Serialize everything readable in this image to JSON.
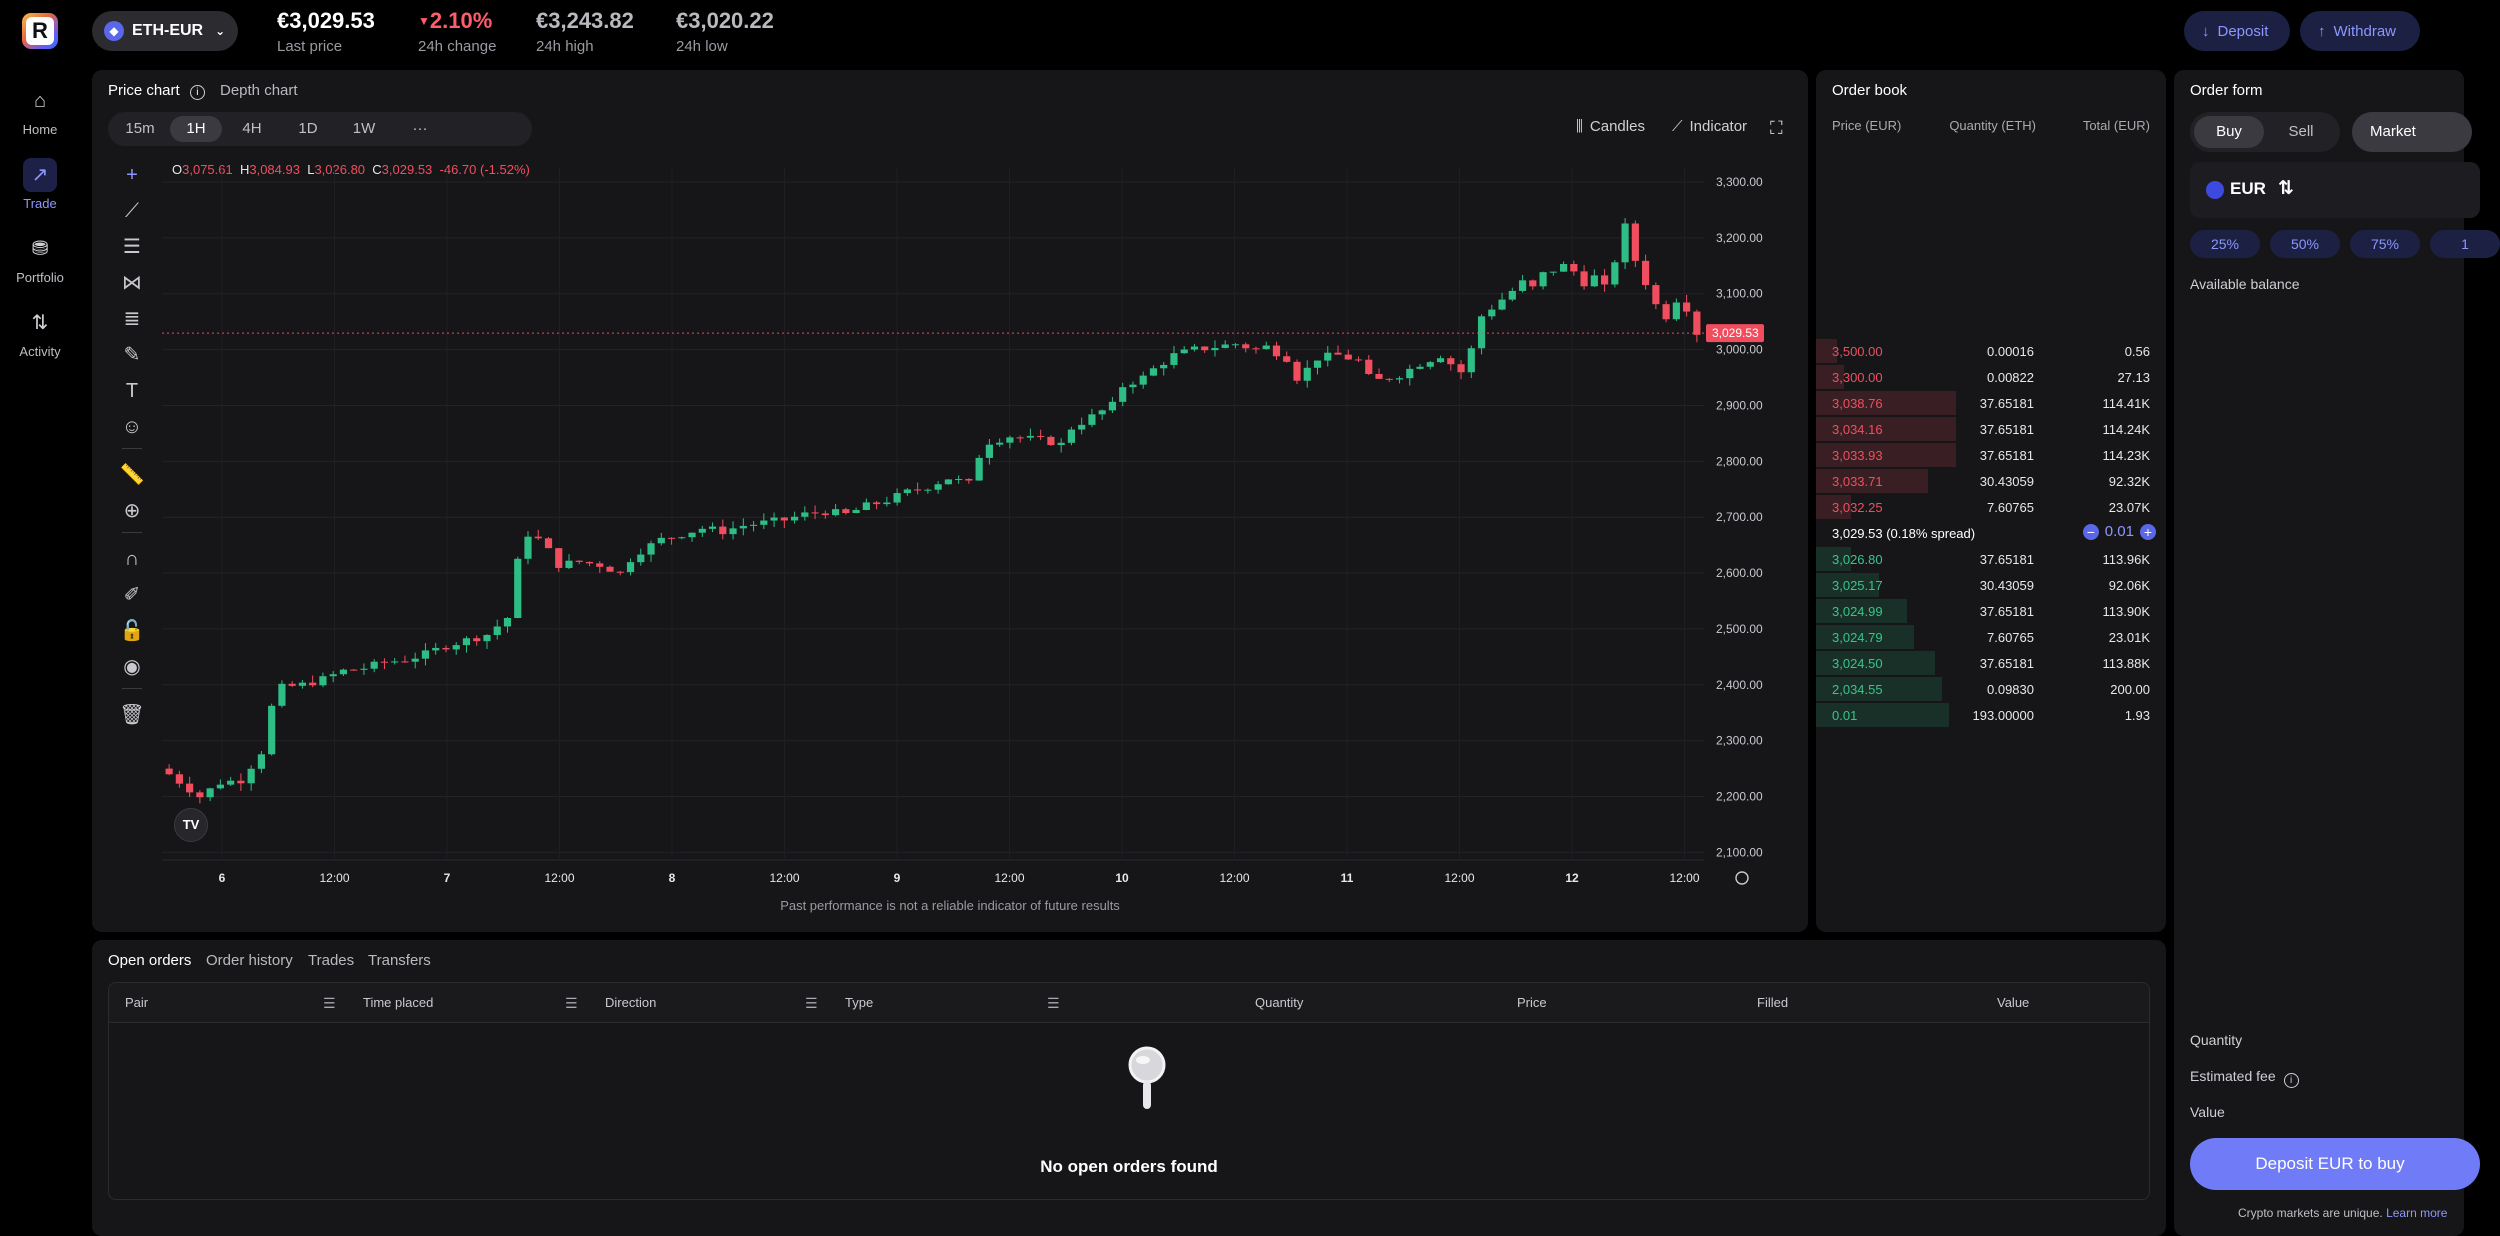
{
  "header": {
    "pair": "ETH-EUR",
    "last_price": "€3,029.53",
    "last_price_label": "Last price",
    "change": "2.10%",
    "change_label": "24h change",
    "high": "€3,243.82",
    "high_label": "24h high",
    "low": "€3,020.22",
    "low_label": "24h low",
    "deposit": "Deposit",
    "withdraw": "Withdraw"
  },
  "nav": [
    {
      "label": "Home",
      "icon": "home-icon"
    },
    {
      "label": "Trade",
      "icon": "trade-icon"
    },
    {
      "label": "Portfolio",
      "icon": "portfolio-icon"
    },
    {
      "label": "Activity",
      "icon": "activity-icon"
    }
  ],
  "chart_panel": {
    "tab_price": "Price chart",
    "tab_depth": "Depth chart",
    "timeframes": [
      "15m",
      "1H",
      "4H",
      "1D",
      "1W",
      "···"
    ],
    "active_timeframe": "1H",
    "candles_btn": "Candles",
    "indicator_btn": "Indicator",
    "ohlc": {
      "o": "3,075.61",
      "h": "3,084.93",
      "l": "3,026.80",
      "c": "3,029.53",
      "chg": "-46.70 (-1.52%)"
    },
    "disclaimer": "Past performance is not a reliable indicator of future results",
    "tv_logo": "TV"
  },
  "chart_data": {
    "type": "candlestick",
    "y_ticks": [
      "3,300.00",
      "3,200.00",
      "3,100.00",
      "3,000.00",
      "2,900.00",
      "2,800.00",
      "2,700.00",
      "2,600.00",
      "2,500.00",
      "2,400.00",
      "2,300.00",
      "2,200.00",
      "2,100.00"
    ],
    "ylim": [
      2090,
      3325
    ],
    "x_ticks": [
      "6",
      "12:00",
      "7",
      "12:00",
      "8",
      "12:00",
      "9",
      "12:00",
      "10",
      "12:00",
      "11",
      "12:00",
      "12",
      "12:00"
    ],
    "last_price_label": "3,029.53",
    "last_price": 3029.53,
    "close_path": [
      [
        0,
        2240
      ],
      [
        3,
        2200
      ],
      [
        5,
        2225
      ],
      [
        7,
        2230
      ],
      [
        9,
        2280
      ],
      [
        10,
        2360
      ],
      [
        11,
        2395
      ],
      [
        13,
        2400
      ],
      [
        15,
        2410
      ],
      [
        17,
        2425
      ],
      [
        19,
        2430
      ],
      [
        21,
        2440
      ],
      [
        23,
        2445
      ],
      [
        25,
        2455
      ],
      [
        27,
        2470
      ],
      [
        29,
        2480
      ],
      [
        31,
        2490
      ],
      [
        33,
        2520
      ],
      [
        34,
        2620
      ],
      [
        35,
        2670
      ],
      [
        36,
        2660
      ],
      [
        37,
        2640
      ],
      [
        38,
        2615
      ],
      [
        40,
        2620
      ],
      [
        42,
        2615
      ],
      [
        44,
        2600
      ],
      [
        45,
        2625
      ],
      [
        46,
        2640
      ],
      [
        48,
        2660
      ],
      [
        50,
        2670
      ],
      [
        52,
        2680
      ],
      [
        54,
        2675
      ],
      [
        56,
        2685
      ],
      [
        58,
        2690
      ],
      [
        60,
        2695
      ],
      [
        62,
        2705
      ],
      [
        64,
        2710
      ],
      [
        66,
        2705
      ],
      [
        68,
        2720
      ],
      [
        70,
        2730
      ],
      [
        72,
        2745
      ],
      [
        74,
        2755
      ],
      [
        76,
        2770
      ],
      [
        78,
        2760
      ],
      [
        79,
        2810
      ],
      [
        80,
        2835
      ],
      [
        82,
        2845
      ],
      [
        84,
        2840
      ],
      [
        86,
        2835
      ],
      [
        87,
        2830
      ],
      [
        88,
        2860
      ],
      [
        90,
        2880
      ],
      [
        92,
        2900
      ],
      [
        93,
        2935
      ],
      [
        95,
        2950
      ],
      [
        96,
        2965
      ],
      [
        98,
        2990
      ],
      [
        100,
        3000
      ],
      [
        102,
        3005
      ],
      [
        104,
        3010
      ],
      [
        106,
        3000
      ],
      [
        107,
        3005
      ],
      [
        109,
        2985
      ],
      [
        110,
        2950
      ],
      [
        111,
        2965
      ],
      [
        112,
        2985
      ],
      [
        114,
        2990
      ],
      [
        116,
        2980
      ],
      [
        117,
        2950
      ],
      [
        118,
        2945
      ],
      [
        120,
        2955
      ],
      [
        122,
        2975
      ],
      [
        124,
        2990
      ],
      [
        126,
        2960
      ],
      [
        127,
        3000
      ],
      [
        128,
        3060
      ],
      [
        130,
        3090
      ],
      [
        132,
        3120
      ],
      [
        133,
        3110
      ],
      [
        134,
        3135
      ],
      [
        136,
        3150
      ],
      [
        137,
        3140
      ],
      [
        138,
        3120
      ],
      [
        139,
        3130
      ],
      [
        140,
        3110
      ],
      [
        141,
        3160
      ],
      [
        142,
        3220
      ],
      [
        143,
        3160
      ],
      [
        144,
        3120
      ],
      [
        145,
        3080
      ],
      [
        146,
        3060
      ],
      [
        147,
        3090
      ],
      [
        148,
        3075
      ],
      [
        149,
        3030
      ]
    ]
  },
  "order_book": {
    "title": "Order book",
    "headers": [
      "Price (EUR)",
      "Quantity (ETH)",
      "Total (EUR)"
    ],
    "asks": [
      {
        "price": "3,500.00",
        "qty": "0.00016",
        "total": "0.56",
        "depth": 0.06
      },
      {
        "price": "3,300.00",
        "qty": "0.00822",
        "total": "27.13",
        "depth": 0.08
      },
      {
        "price": "3,038.76",
        "qty": "37.65181",
        "total": "114.41K",
        "depth": 0.4
      },
      {
        "price": "3,034.16",
        "qty": "37.65181",
        "total": "114.24K",
        "depth": 0.4
      },
      {
        "price": "3,033.93",
        "qty": "37.65181",
        "total": "114.23K",
        "depth": 0.4
      },
      {
        "price": "3,033.71",
        "qty": "30.43059",
        "total": "92.32K",
        "depth": 0.32
      },
      {
        "price": "3,032.25",
        "qty": "7.60765",
        "total": "23.07K",
        "depth": 0.1
      }
    ],
    "mid": "3,029.53 (0.18% spread)",
    "step": "0.01",
    "bids": [
      {
        "price": "3,026.80",
        "qty": "37.65181",
        "total": "113.96K",
        "depth": 0.1
      },
      {
        "price": "3,025.17",
        "qty": "30.43059",
        "total": "92.06K",
        "depth": 0.18
      },
      {
        "price": "3,024.99",
        "qty": "37.65181",
        "total": "113.90K",
        "depth": 0.26
      },
      {
        "price": "3,024.79",
        "qty": "7.60765",
        "total": "23.01K",
        "depth": 0.28
      },
      {
        "price": "3,024.50",
        "qty": "37.65181",
        "total": "113.88K",
        "depth": 0.34
      },
      {
        "price": "2,034.55",
        "qty": "0.09830",
        "total": "200.00",
        "depth": 0.36
      },
      {
        "price": "0.01",
        "qty": "193.00000",
        "total": "1.93",
        "depth": 0.38
      }
    ]
  },
  "order_form": {
    "title": "Order form",
    "buy": "Buy",
    "sell": "Sell",
    "market": "Market",
    "currency": "EUR",
    "pcts": [
      "25%",
      "50%",
      "75%",
      "1"
    ],
    "available_balance": "Available balance",
    "quantity": "Quantity",
    "estimated_fee": "Estimated fee",
    "value": "Value",
    "cta": "Deposit EUR to buy",
    "note": "Crypto markets are unique.",
    "learn_more": "Learn more"
  },
  "orders": {
    "tabs": [
      "Open orders",
      "Order history",
      "Trades",
      "Transfers"
    ],
    "columns": [
      "Pair",
      "Time placed",
      "Direction",
      "Type",
      "Quantity",
      "Price",
      "Filled",
      "Value"
    ],
    "empty": "No open orders found"
  },
  "colors": {
    "up": "#2ebd85",
    "down": "#f04e5e",
    "accent": "#8c97ff",
    "bg": "#000000",
    "panel": "#161619"
  }
}
